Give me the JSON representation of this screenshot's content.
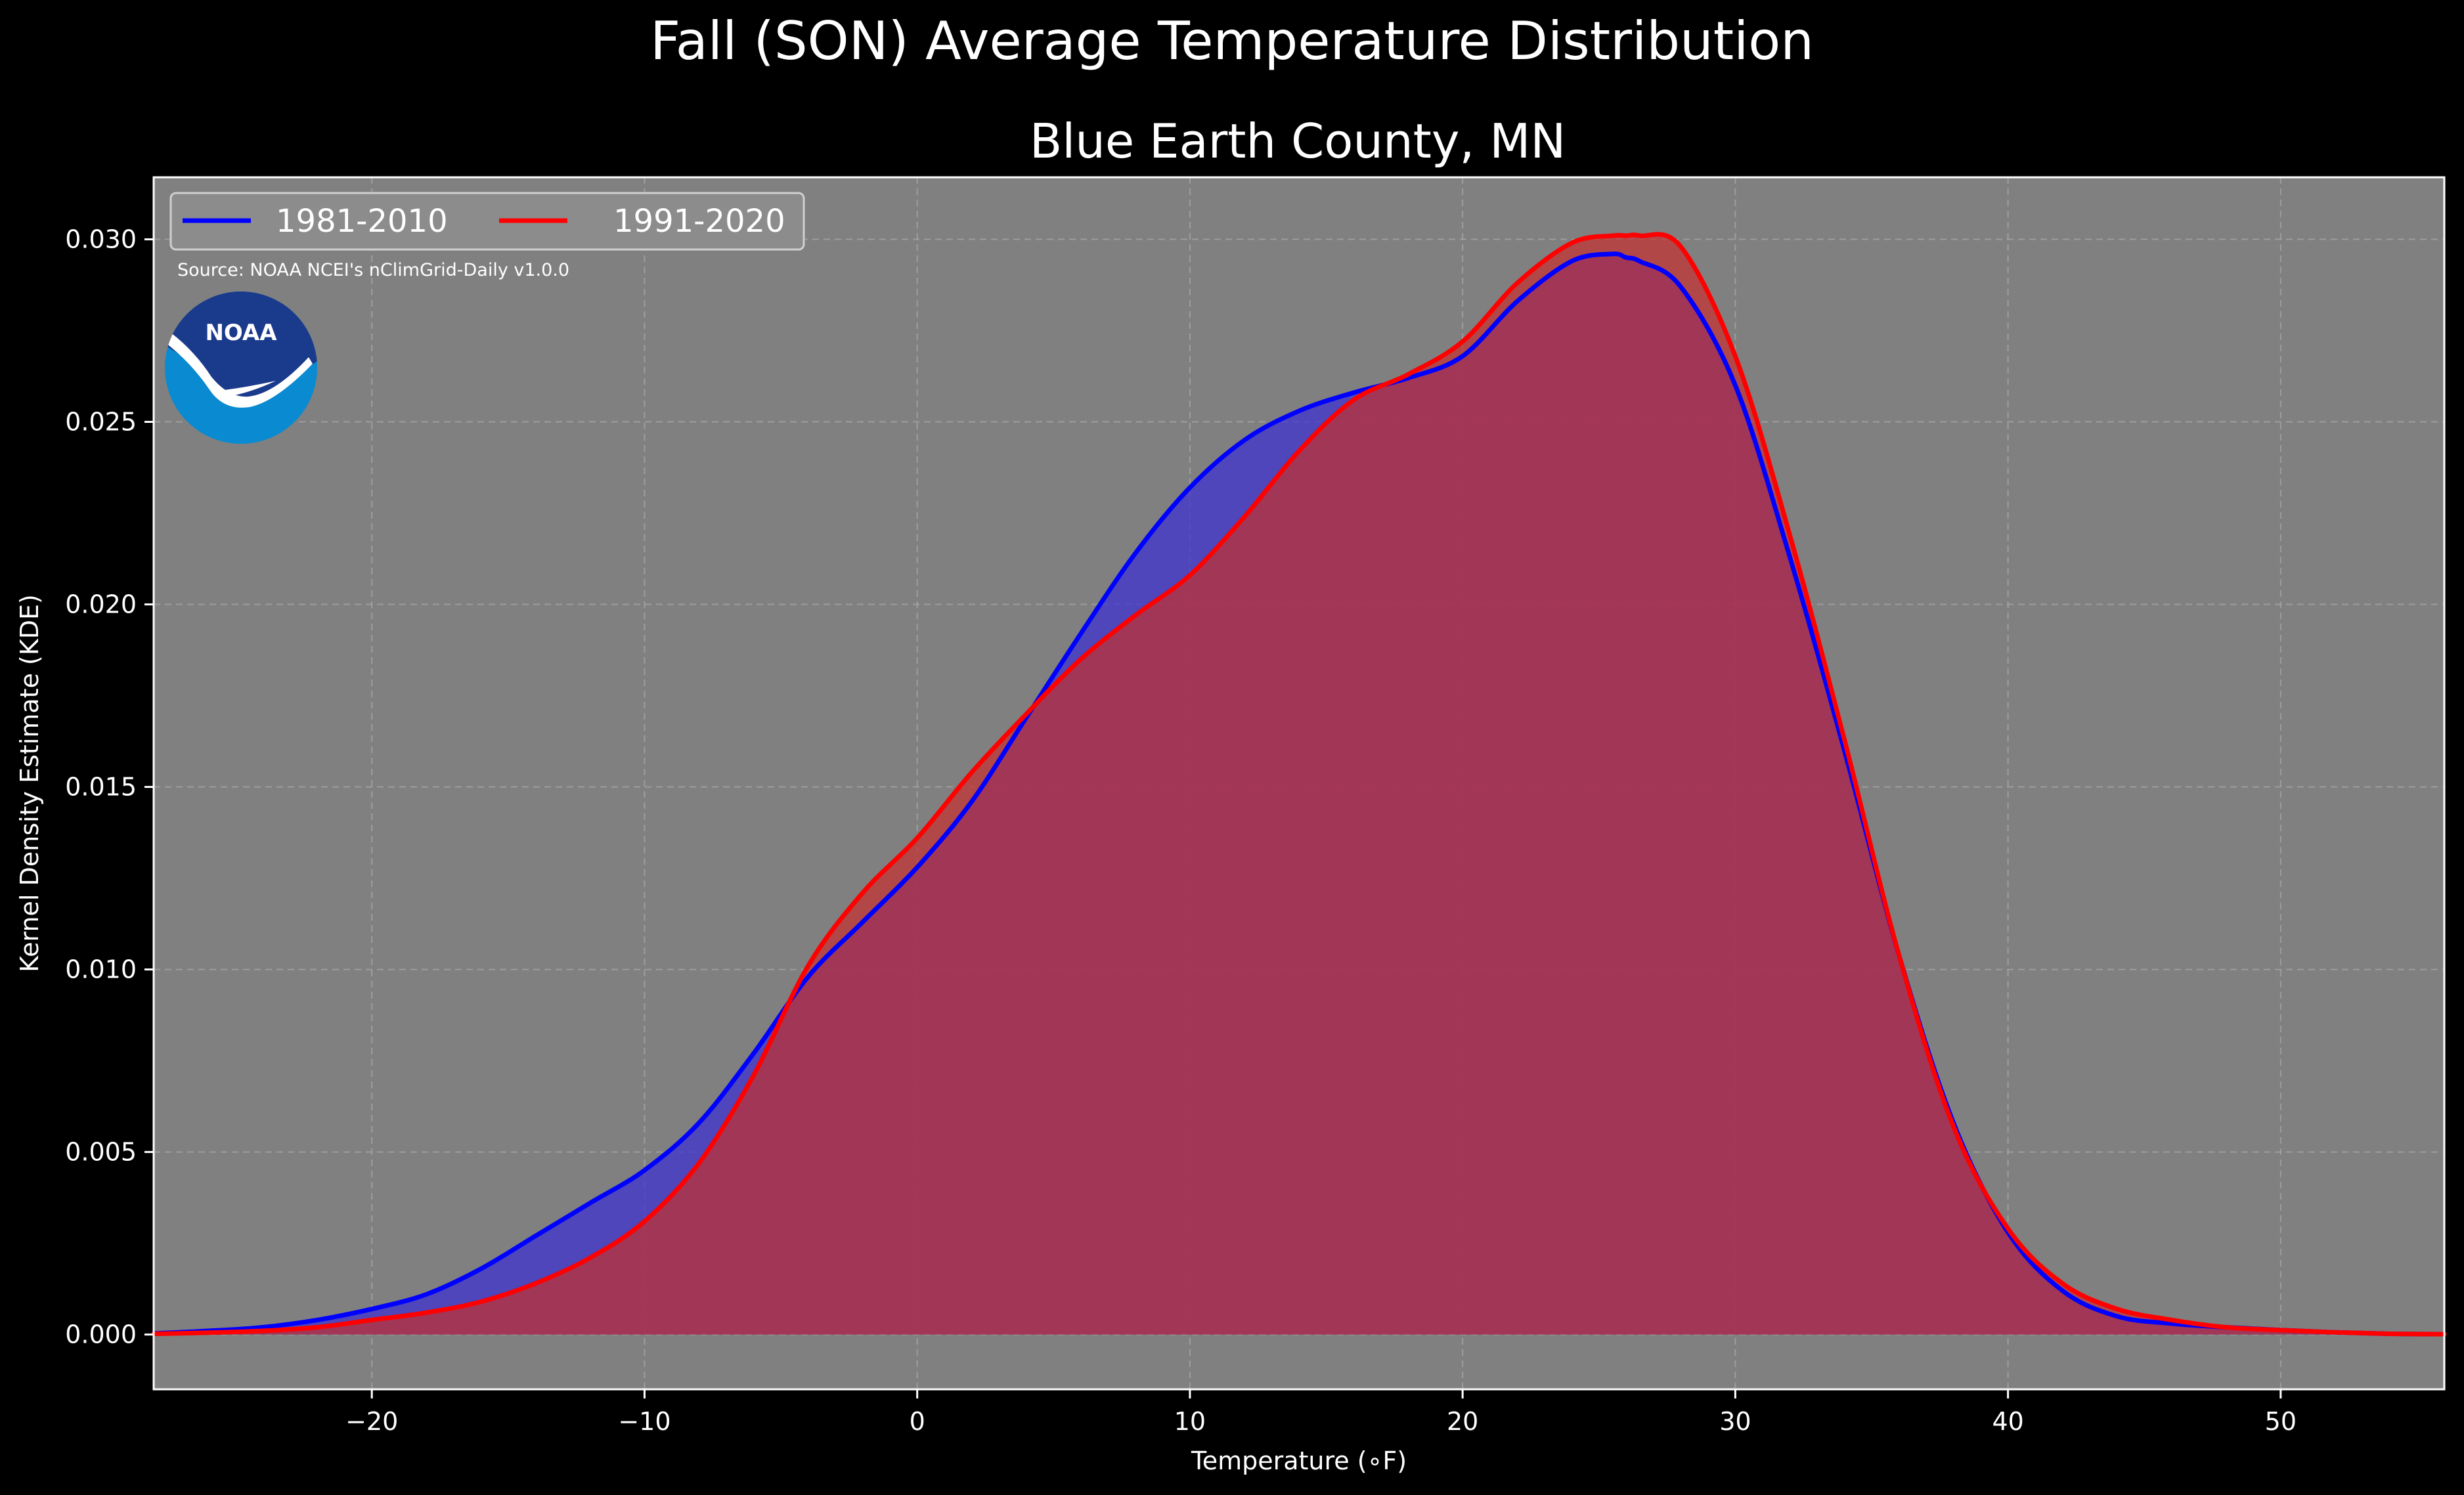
{
  "chart_data": {
    "type": "area",
    "suptitle": "Fall (SON) Average Temperature Distribution",
    "title": "Blue Earth County, MN",
    "xlabel": "Temperature (∘F)",
    "ylabel": "Kernel Density Estimate (KDE)",
    "source": "Source: NOAA NCEI's nClimGrid-Daily v1.0.0",
    "logo_text": "NOAA",
    "xlim": [
      -28,
      56
    ],
    "ylim": [
      -0.0015,
      0.0317
    ],
    "xticks": [
      -20,
      -10,
      0,
      10,
      20,
      30,
      40,
      50
    ],
    "xtick_labels": [
      "−20",
      "−10",
      "0",
      "10",
      "20",
      "30",
      "40",
      "50"
    ],
    "yticks": [
      0.0,
      0.005,
      0.01,
      0.015,
      0.02,
      0.025,
      0.03
    ],
    "ytick_labels": [
      "0.000",
      "0.005",
      "0.010",
      "0.015",
      "0.020",
      "0.025",
      "0.030"
    ],
    "grid": true,
    "legend_placement": "top-left",
    "colors": {
      "background": "#000000",
      "plot_background": "#808080",
      "text": "#ffffff"
    },
    "x": [
      -28,
      -26,
      -24,
      -22,
      -20,
      -18,
      -16,
      -14,
      -12,
      -10,
      -8,
      -6,
      -4,
      -2,
      0,
      2,
      4,
      6,
      8,
      10,
      12,
      14,
      16,
      18,
      20,
      22,
      24,
      25.5,
      26,
      26.5,
      28,
      30,
      32,
      34,
      36,
      38,
      40,
      42,
      44,
      46,
      48,
      50,
      52,
      54,
      56
    ],
    "series": [
      {
        "name": "1981-2010",
        "color": "#0000ff",
        "fill_color": "#3a2fd0",
        "values": [
          3e-05,
          0.0001,
          0.0002,
          0.0004,
          0.0007,
          0.0011,
          0.0018,
          0.0027,
          0.0036,
          0.0045,
          0.0058,
          0.0077,
          0.0098,
          0.0113,
          0.0128,
          0.0146,
          0.0169,
          0.0192,
          0.0214,
          0.0232,
          0.0245,
          0.0253,
          0.0258,
          0.0262,
          0.0268,
          0.0283,
          0.0294,
          0.0296,
          0.0295,
          0.0294,
          0.0287,
          0.026,
          0.0213,
          0.016,
          0.0104,
          0.0058,
          0.0028,
          0.0012,
          0.0005,
          0.0003,
          0.0002,
          0.00012,
          6e-05,
          2e-05,
          1e-05
        ]
      },
      {
        "name": "1991-2020",
        "color": "#ff0000",
        "fill_color": "#c43030",
        "values": [
          2e-05,
          5e-05,
          0.0001,
          0.0002,
          0.0004,
          0.0006,
          0.0009,
          0.0014,
          0.0021,
          0.0031,
          0.0047,
          0.0071,
          0.0101,
          0.0121,
          0.0136,
          0.0154,
          0.017,
          0.0185,
          0.0197,
          0.0208,
          0.0224,
          0.0242,
          0.0256,
          0.0263,
          0.0272,
          0.0288,
          0.0299,
          0.0301,
          0.0301,
          0.0301,
          0.0298,
          0.0268,
          0.0219,
          0.0163,
          0.0104,
          0.0057,
          0.0029,
          0.0014,
          0.0007,
          0.0004,
          0.0002,
          0.00012,
          6e-05,
          2e-05,
          1e-05
        ]
      }
    ]
  }
}
